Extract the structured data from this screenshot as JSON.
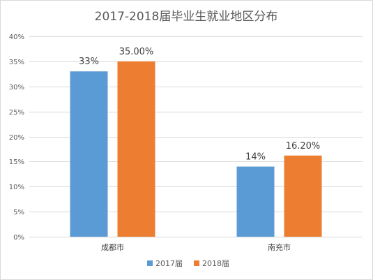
{
  "chart_data": {
    "type": "bar",
    "title": "2017-2018届毕业生就业地区分布",
    "categories": [
      "成都市",
      "南充市"
    ],
    "series": [
      {
        "name": "2017届",
        "values": [
          33,
          14
        ],
        "labels": [
          "33%",
          "14%"
        ],
        "color": "#5b9bd5"
      },
      {
        "name": "2018届",
        "values": [
          35,
          16.2
        ],
        "labels": [
          "35.00%",
          "16.20%"
        ],
        "color": "#ed7d31"
      }
    ],
    "yticks": [
      "0%",
      "5%",
      "10%",
      "15%",
      "20%",
      "25%",
      "30%",
      "35%",
      "40%"
    ],
    "ylim": [
      0,
      40
    ],
    "ytick_step": 5,
    "grid": true,
    "legend_position": "bottom",
    "gridline_color": "#d9d9d9"
  }
}
